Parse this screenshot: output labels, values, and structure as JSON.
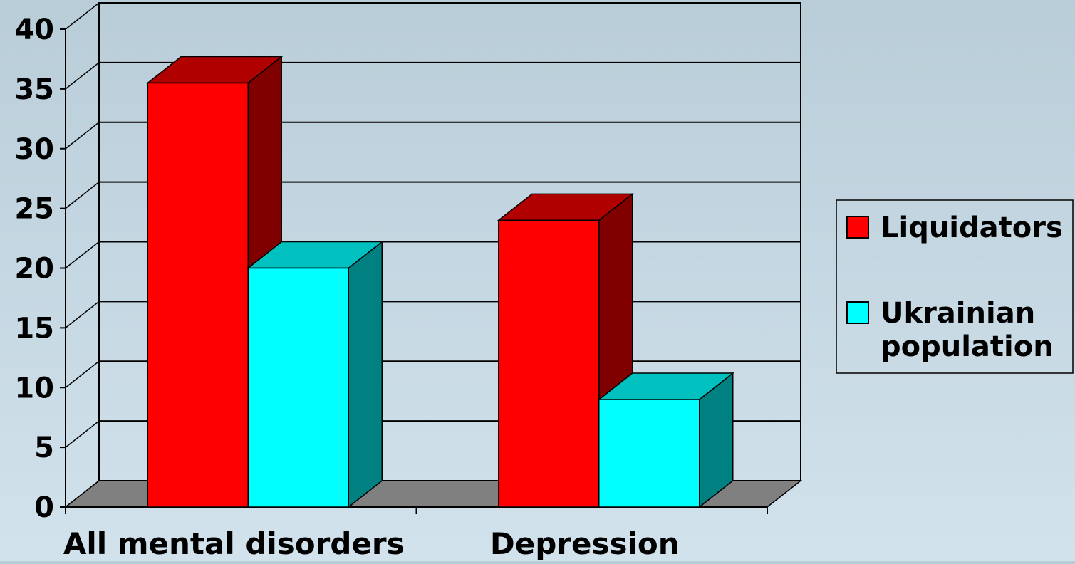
{
  "chart_data": {
    "type": "bar",
    "categories": [
      "All mental disorders",
      "Depression"
    ],
    "series": [
      {
        "name": "Liquidators",
        "values": [
          35.5,
          24
        ],
        "color": "#ff0000",
        "side_color": "#800000",
        "top_color": "#b00000"
      },
      {
        "name": "Ukrainian population",
        "name_lines": [
          "Ukrainian",
          "population"
        ],
        "values": [
          20,
          9
        ],
        "color": "#00ffff",
        "side_color": "#008080",
        "top_color": "#00c0c0"
      }
    ],
    "ylim": [
      0,
      40
    ],
    "yticks": [
      0,
      5,
      10,
      15,
      20,
      25,
      30,
      35,
      40
    ],
    "grid": true,
    "legend": "right",
    "three_d": true,
    "floor_color": "#808080"
  }
}
